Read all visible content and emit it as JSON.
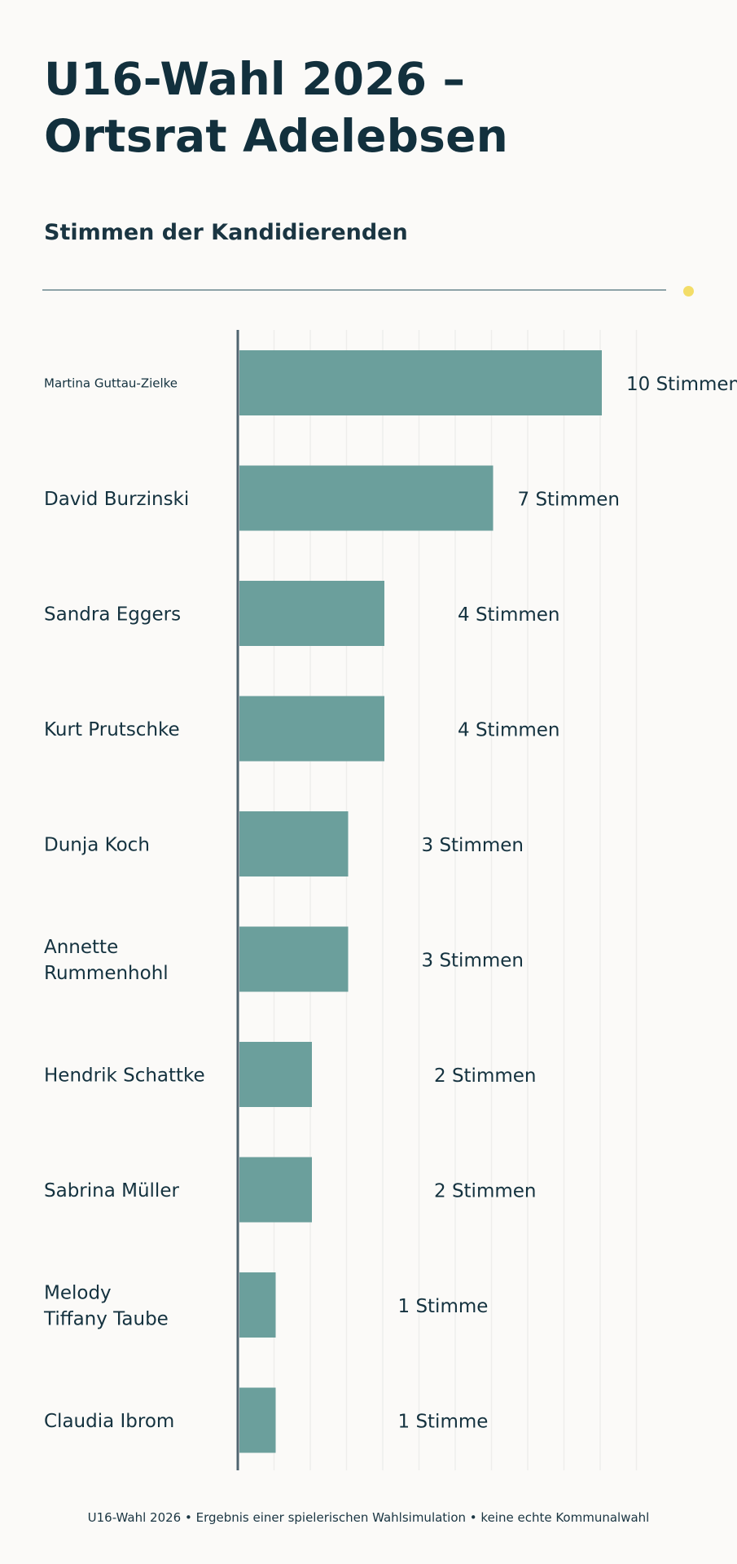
{
  "title_line1": "U16-Wahl 2026 –",
  "title_line2": "Ortsrat Adelebsen",
  "subtitle": "Stimmen der Kandidierenden",
  "footer": "U16-Wahl 2026 • Ergebnis einer spielerischen Wahlsimulation • keine echte Kommunalwahl",
  "colors": {
    "bar": "#6b9f9c",
    "axis": "#4f6470",
    "accent_dot": "#f3dd68",
    "text": "#14323f"
  },
  "chart_data": {
    "type": "bar",
    "orientation": "horizontal",
    "title": "Stimmen der Kandidierenden",
    "xlabel": "",
    "ylabel": "",
    "xlim": [
      0,
      10
    ],
    "grid": true,
    "categories": [
      [
        "Martina Guttau-Zielke"
      ],
      [
        "David Burzinski"
      ],
      [
        "Sandra Eggers"
      ],
      [
        "Kurt Prutschke"
      ],
      [
        "Dunja Koch"
      ],
      [
        "Annette",
        "Rummenhohl"
      ],
      [
        "Hendrik Schattke"
      ],
      [
        "Sabrina Müller"
      ],
      [
        "Melody",
        "Tiffany Taube"
      ],
      [
        "Claudia Ibrom"
      ]
    ],
    "values": [
      10,
      7,
      4,
      4,
      3,
      3,
      2,
      2,
      1,
      1
    ],
    "value_labels": [
      "10 Stimmen",
      "7 Stimmen",
      "4 Stimmen",
      "4 Stimmen",
      "3 Stimmen",
      "3 Stimmen",
      "2 Stimmen",
      "2 Stimmen",
      "1 Stimme",
      "1 Stimme"
    ]
  }
}
